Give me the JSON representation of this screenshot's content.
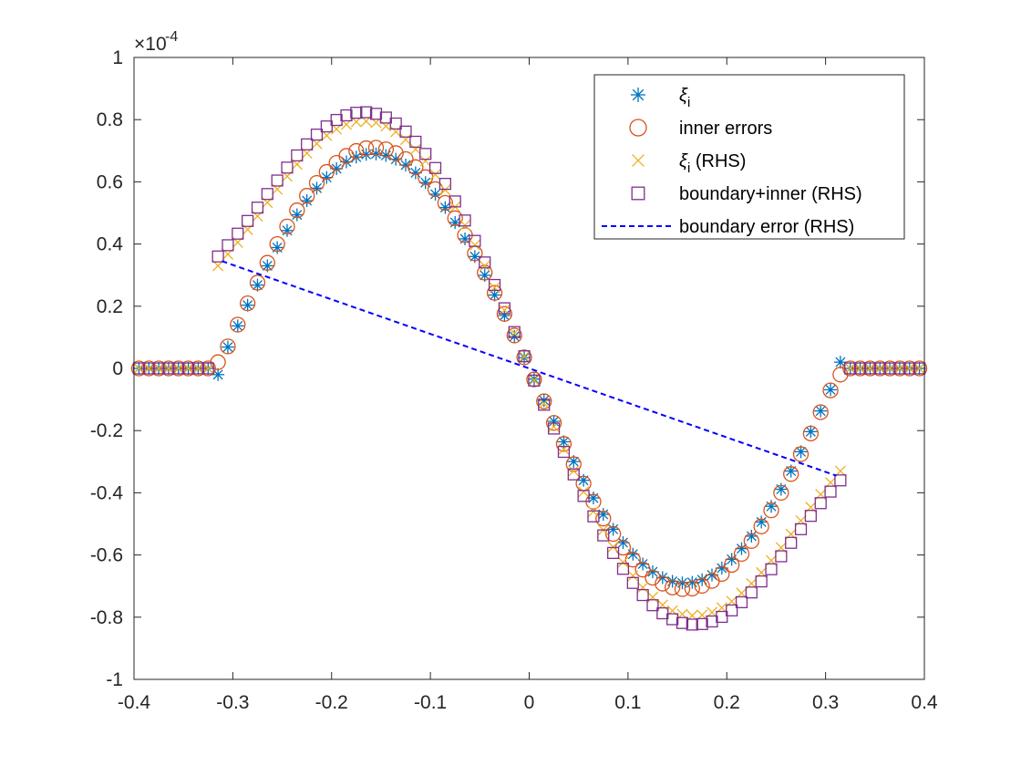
{
  "chart_data": {
    "type": "scatter",
    "title": "",
    "xlabel": "",
    "ylabel": "",
    "xlim": [
      -0.4,
      0.4
    ],
    "ylim": [
      -1,
      1
    ],
    "y_scale_label": "×10",
    "y_scale_exponent": "-4",
    "x_tick_labels": [
      "-0.4",
      "-0.3",
      "-0.2",
      "-0.1",
      "0",
      "0.1",
      "0.2",
      "0.3",
      "0.4"
    ],
    "y_tick_labels": [
      "-1",
      "-0.8",
      "-0.6",
      "-0.4",
      "-0.2",
      "0",
      "0.2",
      "0.4",
      "0.6",
      "0.8",
      "1"
    ],
    "legend_location": "top-right",
    "model": {
      "x_range": [
        -0.395,
        0.395
      ],
      "step": 0.01,
      "support": [
        -0.314,
        0.314
      ],
      "note": "y values in units of 1e-4; amplitude A with series-specific phase/shape"
    },
    "series": [
      {
        "name_main": "ξ",
        "name_sub": "i",
        "name_tail": "",
        "marker": "asterisk",
        "color": "#0072BD",
        "amplitude": 0.69,
        "shape": "sine_offset",
        "phase": 0.02,
        "edge_values": [
          -0.02,
          0.02
        ]
      },
      {
        "name_main": "inner errors",
        "name_sub": "",
        "name_tail": "",
        "marker": "circle",
        "color": "#D95319",
        "amplitude": 0.71,
        "shape": "sine_offset",
        "phase": 0.0,
        "edge_values": [
          0.02,
          -0.02
        ]
      },
      {
        "name_main": "ξ",
        "name_sub": "i",
        "name_tail": " (RHS)",
        "marker": "x",
        "color": "#EDB120",
        "amplitude": 0.88,
        "shape": "sine_rhs",
        "phase": 0.0,
        "edge_values": [
          0.33,
          -0.33
        ]
      },
      {
        "name_main": "boundary+inner (RHS)",
        "name_sub": "",
        "name_tail": "",
        "marker": "square",
        "color": "#7E2F8E",
        "amplitude": 0.9,
        "shape": "sine_rhs",
        "phase": 0.0,
        "edge_values": [
          0.36,
          -0.36
        ]
      },
      {
        "name_main": "boundary error (RHS)",
        "name_sub": "",
        "name_tail": "",
        "marker": "dashed-line",
        "color": "#0000FF",
        "x": [
          -0.311,
          0.311
        ],
        "y": [
          0.345,
          -0.345
        ]
      }
    ]
  }
}
